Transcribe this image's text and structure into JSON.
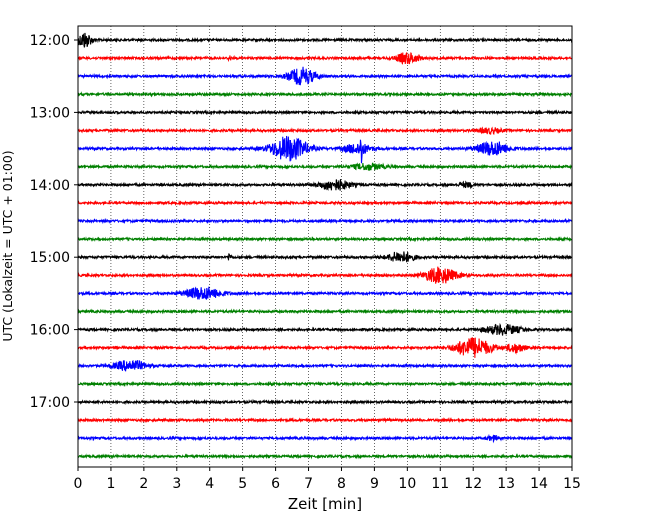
{
  "chart_data": {
    "type": "line",
    "title": "",
    "xlabel": "Zeit  [min]",
    "ylabel": "UTC (Lokalzeit = UTC + 01:00)",
    "xlim": [
      0,
      15
    ],
    "x_ticks": [
      0,
      1,
      2,
      3,
      4,
      5,
      6,
      7,
      8,
      9,
      10,
      11,
      12,
      13,
      14,
      15
    ],
    "y_tick_labels": [
      "12:00",
      "13:00",
      "14:00",
      "15:00",
      "16:00",
      "17:00"
    ],
    "grid": "vertical dotted lines at each minute",
    "trace_interval_minutes": 15,
    "trace_colors": [
      "#000000",
      "#ff0000",
      "#0000ff",
      "#008000"
    ],
    "series": [
      {
        "start": "12:00",
        "events": [
          {
            "center_min": 0.2,
            "amplitude": 0.9,
            "width_min": 0.6
          }
        ]
      },
      {
        "start": "12:15",
        "events": [
          {
            "center_min": 10.0,
            "amplitude": 0.6,
            "width_min": 1.0
          },
          {
            "center_min": 4.6,
            "amplitude": 0.5,
            "width_min": 0.1
          }
        ]
      },
      {
        "start": "12:30",
        "events": [
          {
            "center_min": 6.8,
            "amplitude": 0.95,
            "width_min": 1.2
          }
        ]
      },
      {
        "start": "12:45",
        "events": []
      },
      {
        "start": "13:00",
        "events": []
      },
      {
        "start": "13:15",
        "events": [
          {
            "center_min": 12.5,
            "amplitude": 0.3,
            "width_min": 1.0
          }
        ]
      },
      {
        "start": "13:30",
        "events": [
          {
            "center_min": 6.4,
            "amplitude": 1.4,
            "width_min": 1.6
          },
          {
            "center_min": 8.6,
            "amplitude": 1.8,
            "width_min": 0.08
          },
          {
            "center_min": 8.5,
            "amplitude": 0.6,
            "width_min": 1.2
          },
          {
            "center_min": 12.6,
            "amplitude": 0.8,
            "width_min": 1.4
          }
        ]
      },
      {
        "start": "13:45",
        "events": [
          {
            "center_min": 8.8,
            "amplitude": 0.35,
            "width_min": 1.4
          }
        ]
      },
      {
        "start": "14:00",
        "events": [
          {
            "center_min": 7.8,
            "amplitude": 0.6,
            "width_min": 1.4
          },
          {
            "center_min": 11.8,
            "amplitude": 0.25,
            "width_min": 0.6
          }
        ]
      },
      {
        "start": "14:15",
        "events": []
      },
      {
        "start": "14:30",
        "events": []
      },
      {
        "start": "14:45",
        "events": []
      },
      {
        "start": "15:00",
        "events": [
          {
            "center_min": 9.8,
            "amplitude": 0.6,
            "width_min": 1.2
          },
          {
            "center_min": 4.6,
            "amplitude": 0.45,
            "width_min": 0.15
          }
        ]
      },
      {
        "start": "15:15",
        "events": [
          {
            "center_min": 11.0,
            "amplitude": 0.9,
            "width_min": 1.4
          }
        ]
      },
      {
        "start": "15:30",
        "events": [
          {
            "center_min": 3.8,
            "amplitude": 0.7,
            "width_min": 1.6
          }
        ]
      },
      {
        "start": "15:45",
        "events": []
      },
      {
        "start": "16:00",
        "events": [
          {
            "center_min": 12.9,
            "amplitude": 0.55,
            "width_min": 1.6
          }
        ]
      },
      {
        "start": "16:15",
        "events": [
          {
            "center_min": 12.0,
            "amplitude": 1.1,
            "width_min": 1.6
          },
          {
            "center_min": 13.3,
            "amplitude": 0.5,
            "width_min": 0.8
          }
        ]
      },
      {
        "start": "16:30",
        "events": [
          {
            "center_min": 1.6,
            "amplitude": 0.6,
            "width_min": 1.4
          }
        ]
      },
      {
        "start": "16:45",
        "events": []
      },
      {
        "start": "17:00",
        "events": []
      },
      {
        "start": "17:15",
        "events": []
      },
      {
        "start": "17:30",
        "events": [
          {
            "center_min": 12.6,
            "amplitude": 0.25,
            "width_min": 0.5
          }
        ]
      },
      {
        "start": "17:45",
        "events": []
      }
    ]
  }
}
